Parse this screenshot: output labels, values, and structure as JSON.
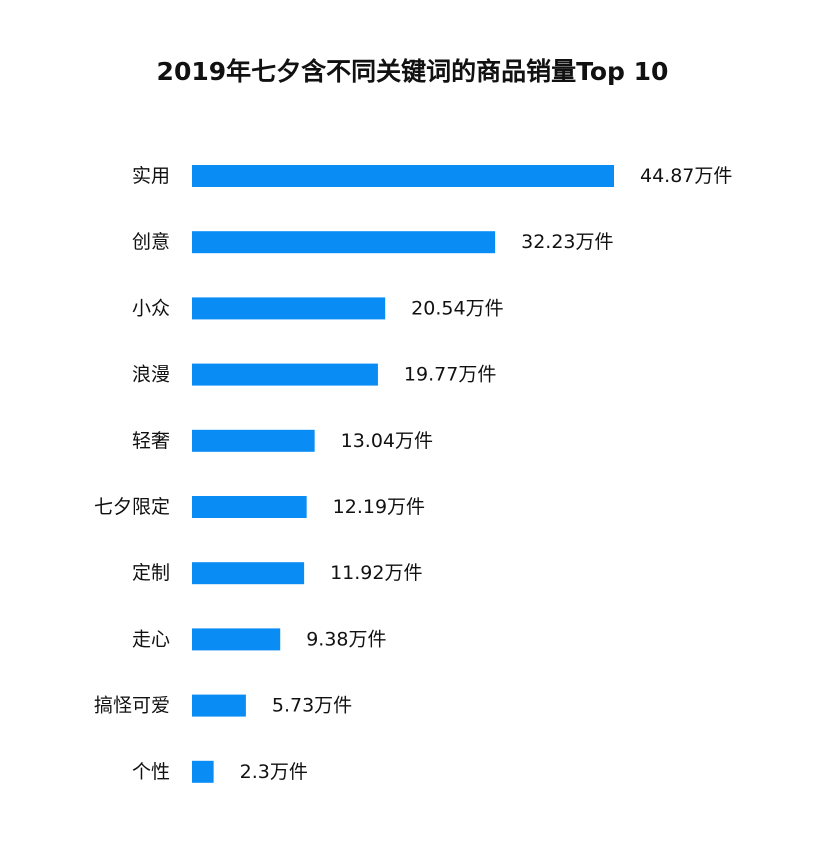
{
  "chart_data": {
    "type": "bar",
    "orientation": "horizontal",
    "title": "2019年七夕含不同关键词的商品销量Top 10",
    "categories": [
      "实用",
      "创意",
      "小众",
      "浪漫",
      "轻奢",
      "七夕限定",
      "定制",
      "走心",
      "搞怪可爱",
      "个性"
    ],
    "values": [
      44.87,
      32.23,
      20.54,
      19.77,
      13.04,
      12.19,
      11.92,
      9.38,
      5.73,
      2.3
    ],
    "value_labels": [
      "44.87万件",
      "32.23万件",
      "20.54万件",
      "19.77万件",
      "13.04万件",
      "12.19万件",
      "11.92万件",
      "9.38万件",
      "5.73万件",
      "2.3万件"
    ],
    "unit": "万件",
    "xlabel": "",
    "ylabel": "",
    "xlim": [
      0,
      44.87
    ],
    "grid": false,
    "legend": "none",
    "bar_color": "#0a8cf5"
  }
}
